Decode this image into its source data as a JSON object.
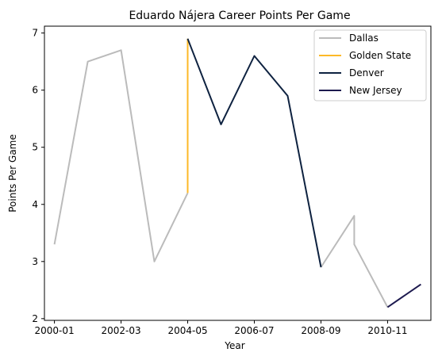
{
  "chart_data": {
    "type": "line",
    "title": "Eduardo Nájera Career Points Per Game",
    "xlabel": "Year",
    "ylabel": "Points Per Game",
    "x_ticks": [
      "2000-01",
      "2002-03",
      "2004-05",
      "2006-07",
      "2008-09",
      "2010-11"
    ],
    "xlim": [
      -0.3,
      11.3
    ],
    "ylim": [
      1.97,
      7.12
    ],
    "y_ticks": [
      2,
      3,
      4,
      5,
      6,
      7
    ],
    "grid": false,
    "legend_position": "top-right",
    "series": [
      {
        "name": "Dallas",
        "color": "#bbbbbb",
        "points": [
          [
            "2000-01",
            3.3
          ],
          [
            "2001-02",
            6.5
          ],
          [
            "2002-03",
            6.7
          ],
          [
            "2003-04",
            3.0
          ],
          [
            "2004-05",
            4.2
          ]
        ]
      },
      {
        "name": "Dallas",
        "color": "#bbbbbb",
        "legend": false,
        "points": [
          [
            "2008-09",
            2.9
          ],
          [
            "2009-10",
            3.8
          ],
          [
            "2009-10",
            3.3
          ],
          [
            "2010-11",
            2.2
          ]
        ]
      },
      {
        "name": "Golden State",
        "color": "#fdb927",
        "points": [
          [
            "2004-05",
            4.2
          ],
          [
            "2004-05",
            6.9
          ]
        ]
      },
      {
        "name": "Denver",
        "color": "#0e2240",
        "points": [
          [
            "2004-05",
            6.9
          ],
          [
            "2005-06",
            5.4
          ],
          [
            "2006-07",
            6.6
          ],
          [
            "2007-08",
            5.9
          ],
          [
            "2008-09",
            2.9
          ]
        ]
      },
      {
        "name": "New Jersey",
        "color": "#1d1a4f",
        "points": [
          [
            "2010-11",
            2.2
          ],
          [
            "2011-12",
            2.6
          ]
        ]
      }
    ]
  }
}
